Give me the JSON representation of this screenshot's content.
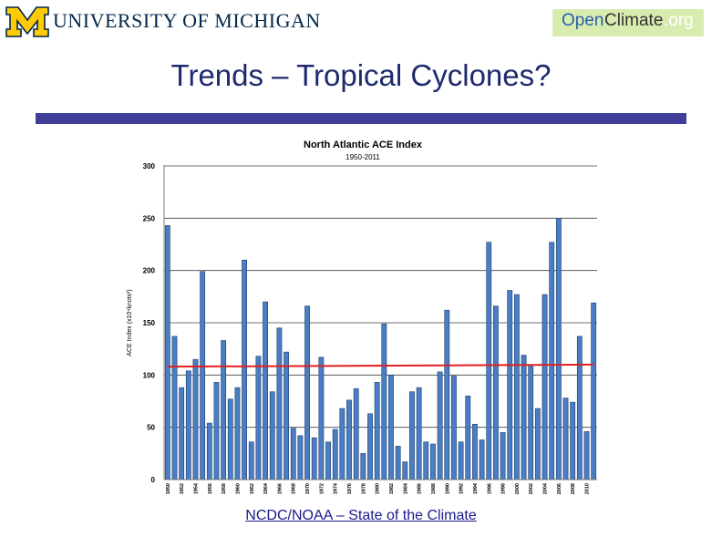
{
  "header": {
    "logo_text": "UNIVERSITY OF MICHIGAN",
    "badge": {
      "open": "Open",
      "climate": "Climate",
      "org": ".org"
    }
  },
  "slide": {
    "title": "Trends – Tropical Cyclones?",
    "source_link": "NCDC/NOAA – State of the Climate"
  },
  "colors": {
    "umich_blue": "#00274c",
    "maize": "#ffcb05",
    "title_bar": "#3f3f9a",
    "bar_fill": "#4a7dc1",
    "trend_line": "#e02020"
  },
  "chart_data": {
    "type": "bar",
    "title": "North Atlantic ACE Index",
    "subtitle": "1950-2011",
    "ylabel": "ACE Index (x10⁴knots²)",
    "ylim": [
      0,
      300
    ],
    "yticks": [
      0,
      50,
      100,
      150,
      200,
      250,
      300
    ],
    "grid": true,
    "x_tick_labels": [
      "1950",
      "1952",
      "1954",
      "1956",
      "1958",
      "1960",
      "1962",
      "1964",
      "1966",
      "1968",
      "1970",
      "1972",
      "1974",
      "1976",
      "1978",
      "1980",
      "1982",
      "1984",
      "1986",
      "1988",
      "1990",
      "1992",
      "1994",
      "1996",
      "1998",
      "2000",
      "2002",
      "2004",
      "2006",
      "2008",
      "2010"
    ],
    "categories": [
      1950,
      1951,
      1952,
      1953,
      1954,
      1955,
      1956,
      1957,
      1958,
      1959,
      1960,
      1961,
      1962,
      1963,
      1964,
      1965,
      1966,
      1967,
      1968,
      1969,
      1970,
      1971,
      1972,
      1973,
      1974,
      1975,
      1976,
      1977,
      1978,
      1979,
      1980,
      1981,
      1982,
      1983,
      1984,
      1985,
      1986,
      1987,
      1988,
      1989,
      1990,
      1991,
      1992,
      1993,
      1994,
      1995,
      1996,
      1997,
      1998,
      1999,
      2000,
      2001,
      2002,
      2003,
      2004,
      2005,
      2006,
      2007,
      2008,
      2009,
      2010,
      2011
    ],
    "values": [
      243,
      137,
      88,
      104,
      115,
      199,
      54,
      93,
      133,
      77,
      88,
      210,
      36,
      118,
      170,
      84,
      145,
      122,
      49,
      42,
      166,
      40,
      117,
      36,
      48,
      68,
      76,
      87,
      25,
      63,
      93,
      149,
      100,
      32,
      17,
      84,
      88,
      36,
      34,
      103,
      162,
      99,
      36,
      80,
      53,
      38,
      227,
      166,
      45,
      181,
      177,
      119,
      110,
      68,
      177,
      227,
      250,
      78,
      74,
      137,
      46,
      169
    ],
    "reference_line": {
      "name": "",
      "values": [
        108,
        110
      ]
    }
  }
}
